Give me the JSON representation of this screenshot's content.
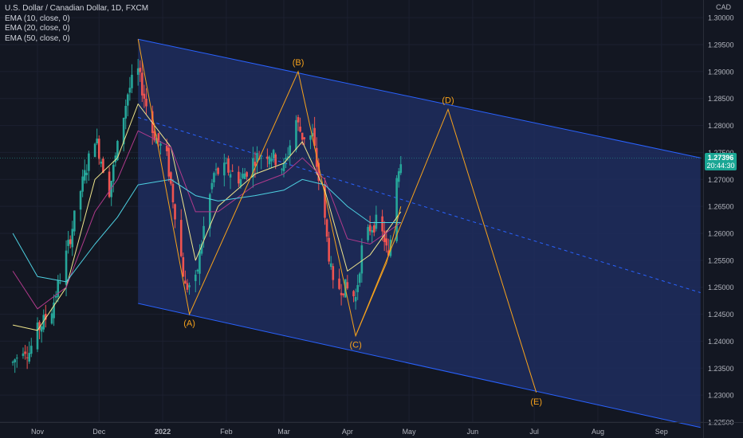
{
  "legend": {
    "title": "U.S. Dollar / Canadian Dollar, 1D, FXCM",
    "ema10": "EMA (10, close, 0)",
    "ema20": "EMA (20, close, 0)",
    "ema50": "EMA (50, close, 0)"
  },
  "price_axis": {
    "currency": "CAD",
    "ticks": [
      "1.30000",
      "1.29500",
      "1.29000",
      "1.28500",
      "1.28000",
      "1.27500",
      "1.27000",
      "1.26500",
      "1.26000",
      "1.25500",
      "1.25000",
      "1.24500",
      "1.24000",
      "1.23500",
      "1.23000",
      "1.22500"
    ]
  },
  "time_axis": {
    "ticks": [
      "Nov",
      "Dec",
      "2022",
      "Feb",
      "Mar",
      "Apr",
      "May",
      "Jun",
      "Jul",
      "Aug",
      "Sep"
    ]
  },
  "last_price": {
    "price": "1.27396",
    "countdown": "20:44:30"
  },
  "colors": {
    "background": "#131722",
    "up": "#26a69a",
    "down": "#ef5350",
    "channel_fill": "#1e2d5e",
    "channel_line": "#2962ff",
    "wave": "#f7a21b",
    "ema10": "#f0e68c",
    "ema20": "#b03a8c",
    "ema50": "#4dd0e1",
    "badge": "#1aa694"
  },
  "chart_data": {
    "type": "candlestick",
    "symbol": "USDCAD",
    "interval": "1D",
    "ylim": [
      1.2225,
      1.3025
    ],
    "approx_closes": [
      {
        "date": "2021-10-20",
        "close": 1.236
      },
      {
        "date": "2021-10-25",
        "close": 1.239
      },
      {
        "date": "2021-10-28",
        "close": 1.238
      },
      {
        "date": "2021-11-01",
        "close": 1.242
      },
      {
        "date": "2021-11-08",
        "close": 1.246
      },
      {
        "date": "2021-11-15",
        "close": 1.256
      },
      {
        "date": "2021-11-22",
        "close": 1.268
      },
      {
        "date": "2021-11-29",
        "close": 1.278
      },
      {
        "date": "2021-12-06",
        "close": 1.268
      },
      {
        "date": "2021-12-10",
        "close": 1.276
      },
      {
        "date": "2021-12-15",
        "close": 1.286
      },
      {
        "date": "2021-12-17",
        "close": 1.288
      },
      {
        "date": "2021-12-20",
        "close": 1.29
      },
      {
        "date": "2021-12-27",
        "close": 1.279
      },
      {
        "date": "2022-01-03",
        "close": 1.274
      },
      {
        "date": "2022-01-07",
        "close": 1.264
      },
      {
        "date": "2022-01-12",
        "close": 1.25
      },
      {
        "date": "2022-01-17",
        "close": 1.251
      },
      {
        "date": "2022-01-21",
        "close": 1.261
      },
      {
        "date": "2022-01-26",
        "close": 1.271
      },
      {
        "date": "2022-02-01",
        "close": 1.272
      },
      {
        "date": "2022-02-08",
        "close": 1.27
      },
      {
        "date": "2022-02-15",
        "close": 1.274
      },
      {
        "date": "2022-02-22",
        "close": 1.275
      },
      {
        "date": "2022-03-01",
        "close": 1.272
      },
      {
        "date": "2022-03-07",
        "close": 1.281
      },
      {
        "date": "2022-03-10",
        "close": 1.278
      },
      {
        "date": "2022-03-15",
        "close": 1.278
      },
      {
        "date": "2022-03-21",
        "close": 1.262
      },
      {
        "date": "2022-03-25",
        "close": 1.25
      },
      {
        "date": "2022-03-31",
        "close": 1.25
      },
      {
        "date": "2022-04-05",
        "close": 1.248
      },
      {
        "date": "2022-04-08",
        "close": 1.257
      },
      {
        "date": "2022-04-12",
        "close": 1.261
      },
      {
        "date": "2022-04-15",
        "close": 1.262
      },
      {
        "date": "2022-04-19",
        "close": 1.259
      },
      {
        "date": "2022-04-21",
        "close": 1.255
      },
      {
        "date": "2022-04-25",
        "close": 1.271
      },
      {
        "date": "2022-04-27",
        "close": 1.274
      }
    ],
    "ema10": [
      {
        "date": "2021-10-20",
        "value": 1.243
      },
      {
        "date": "2021-11-01",
        "value": 1.242
      },
      {
        "date": "2021-11-15",
        "value": 1.25
      },
      {
        "date": "2021-11-29",
        "value": 1.27
      },
      {
        "date": "2021-12-10",
        "value": 1.274
      },
      {
        "date": "2021-12-20",
        "value": 1.284
      },
      {
        "date": "2022-01-05",
        "value": 1.276
      },
      {
        "date": "2022-01-17",
        "value": 1.255
      },
      {
        "date": "2022-01-28",
        "value": 1.265
      },
      {
        "date": "2022-02-15",
        "value": 1.271
      },
      {
        "date": "2022-03-01",
        "value": 1.273
      },
      {
        "date": "2022-03-10",
        "value": 1.277
      },
      {
        "date": "2022-03-21",
        "value": 1.268
      },
      {
        "date": "2022-04-01",
        "value": 1.253
      },
      {
        "date": "2022-04-12",
        "value": 1.256
      },
      {
        "date": "2022-04-27",
        "value": 1.264
      }
    ],
    "ema20": [
      {
        "date": "2021-10-20",
        "value": 1.253
      },
      {
        "date": "2021-11-01",
        "value": 1.246
      },
      {
        "date": "2021-11-15",
        "value": 1.25
      },
      {
        "date": "2021-11-29",
        "value": 1.264
      },
      {
        "date": "2021-12-10",
        "value": 1.27
      },
      {
        "date": "2021-12-20",
        "value": 1.279
      },
      {
        "date": "2022-01-05",
        "value": 1.276
      },
      {
        "date": "2022-01-17",
        "value": 1.264
      },
      {
        "date": "2022-01-28",
        "value": 1.264
      },
      {
        "date": "2022-02-15",
        "value": 1.269
      },
      {
        "date": "2022-03-01",
        "value": 1.271
      },
      {
        "date": "2022-03-10",
        "value": 1.274
      },
      {
        "date": "2022-03-21",
        "value": 1.27
      },
      {
        "date": "2022-04-01",
        "value": 1.259
      },
      {
        "date": "2022-04-12",
        "value": 1.258
      },
      {
        "date": "2022-04-27",
        "value": 1.262
      }
    ],
    "ema50": [
      {
        "date": "2021-10-20",
        "value": 1.26
      },
      {
        "date": "2021-11-01",
        "value": 1.252
      },
      {
        "date": "2021-11-15",
        "value": 1.251
      },
      {
        "date": "2021-11-29",
        "value": 1.258
      },
      {
        "date": "2021-12-10",
        "value": 1.263
      },
      {
        "date": "2021-12-20",
        "value": 1.269
      },
      {
        "date": "2022-01-05",
        "value": 1.27
      },
      {
        "date": "2022-01-17",
        "value": 1.267
      },
      {
        "date": "2022-01-28",
        "value": 1.266
      },
      {
        "date": "2022-02-15",
        "value": 1.267
      },
      {
        "date": "2022-03-01",
        "value": 1.268
      },
      {
        "date": "2022-03-10",
        "value": 1.27
      },
      {
        "date": "2022-03-21",
        "value": 1.269
      },
      {
        "date": "2022-04-01",
        "value": 1.265
      },
      {
        "date": "2022-04-12",
        "value": 1.262
      },
      {
        "date": "2022-04-27",
        "value": 1.262
      }
    ],
    "channel": {
      "start_date": "2021-12-20",
      "end_date": "2022-09-20",
      "upper": [
        1.296,
        1.274
      ],
      "middle": [
        1.2815,
        1.249
      ],
      "lower": [
        1.247,
        1.224
      ]
    },
    "wave_points": [
      {
        "label": "",
        "date": "2021-12-20",
        "price": 1.296
      },
      {
        "label": "(A)",
        "date": "2022-01-14",
        "price": 1.245
      },
      {
        "label": "(B)",
        "date": "2022-03-08",
        "price": 1.29
      },
      {
        "label": "(C)",
        "date": "2022-04-05",
        "price": 1.241
      },
      {
        "label": "(D)",
        "date": "2022-05-20",
        "price": 1.283
      },
      {
        "label": "(E)",
        "date": "2022-07-02",
        "price": 1.2305
      }
    ],
    "wave_extra": [
      {
        "date": "2022-04-20",
        "price": 1.2545
      },
      {
        "date": "2022-04-27",
        "price": 1.265
      }
    ]
  }
}
